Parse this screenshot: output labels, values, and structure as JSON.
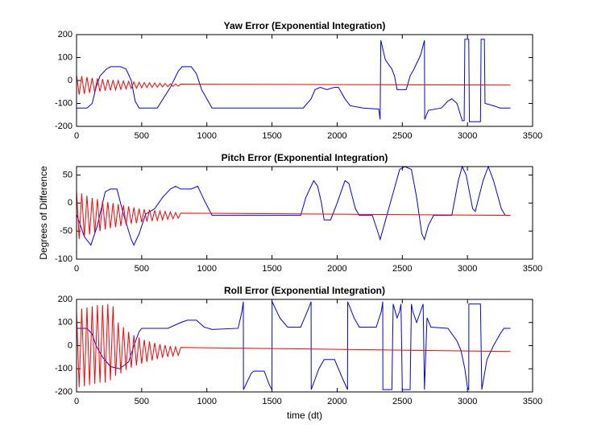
{
  "chart_data": [
    {
      "type": "line",
      "title": "Yaw Error (Exponential Integration)",
      "xlim": [
        0,
        3500
      ],
      "xticks": [
        0,
        500,
        1000,
        1500,
        2000,
        2500,
        3000,
        3500
      ],
      "ylim": [
        -200,
        200
      ],
      "yticks": [
        -200,
        -100,
        0,
        100,
        200
      ],
      "series": [
        {
          "color": "#0000ff",
          "x": [
            0,
            80,
            120,
            150,
            180,
            230,
            260,
            340,
            380,
            420,
            450,
            480,
            620,
            720,
            780,
            810,
            880,
            920,
            960,
            1040,
            1740,
            1800,
            1830,
            1870,
            1920,
            1980,
            2010,
            2060,
            2100,
            2200,
            2320,
            2330,
            2335,
            2370,
            2420,
            2440,
            2460,
            2530,
            2560,
            2590,
            2640,
            2670,
            2672,
            2700,
            2800,
            2850,
            2880,
            2920,
            2960,
            2975,
            2980,
            3010,
            3015,
            3100,
            3105,
            3130,
            3135,
            3200,
            3250,
            3330
          ],
          "values": [
            -120,
            -120,
            -100,
            -30,
            20,
            50,
            60,
            60,
            50,
            0,
            -90,
            -120,
            -120,
            -30,
            40,
            60,
            60,
            30,
            -40,
            -120,
            -120,
            -80,
            -40,
            -30,
            -40,
            -30,
            -30,
            -80,
            -110,
            -120,
            -125,
            -170,
            175,
            90,
            50,
            20,
            -40,
            -40,
            20,
            50,
            110,
            175,
            -170,
            -130,
            -120,
            -90,
            -80,
            -100,
            -175,
            -175,
            180,
            180,
            -180,
            -180,
            180,
            180,
            -100,
            -110,
            -120,
            -120
          ]
        },
        {
          "color": "#ff0000",
          "x": [
            0,
            20,
            40,
            60,
            80,
            100,
            120,
            140,
            160,
            180,
            200,
            220,
            240,
            260,
            280,
            300,
            320,
            340,
            360,
            380,
            400,
            420,
            440,
            460,
            480,
            500,
            520,
            540,
            560,
            580,
            600,
            620,
            640,
            660,
            680,
            700,
            720,
            740,
            760,
            780,
            800,
            3330
          ],
          "values": [
            25,
            -62,
            19,
            -58,
            15,
            -54,
            11,
            -51,
            9,
            -48,
            6,
            -45,
            4,
            -43,
            2,
            -41,
            0,
            -39,
            -2,
            -37,
            -4,
            -35,
            -6,
            -34,
            -8,
            -32,
            -9,
            -31,
            -10,
            -30,
            -11,
            -29,
            -12,
            -28,
            -13,
            -27,
            -14,
            -26,
            -15,
            -25,
            -16,
            -20
          ]
        }
      ]
    },
    {
      "type": "line",
      "title": "Pitch Error (Exponential Integration)",
      "ylabel": "Degrees of Difference",
      "xlim": [
        0,
        3500
      ],
      "xticks": [
        0,
        500,
        1000,
        1500,
        2000,
        2500,
        3000,
        3500
      ],
      "ylim": [
        -100,
        65
      ],
      "yticks": [
        -100,
        -50,
        0,
        50
      ],
      "series": [
        {
          "color": "#0000ff",
          "x": [
            0,
            60,
            110,
            160,
            220,
            260,
            310,
            360,
            420,
            440,
            480,
            530,
            600,
            660,
            720,
            760,
            800,
            880,
            930,
            980,
            1040,
            1720,
            1760,
            1820,
            1850,
            1880,
            1900,
            1950,
            2000,
            2060,
            2090,
            2140,
            2170,
            2270,
            2310,
            2330,
            2360,
            2420,
            2480,
            2520,
            2570,
            2610,
            2650,
            2670,
            2700,
            2740,
            2880,
            2930,
            2960,
            2990,
            3040,
            3060,
            3120,
            3160,
            3200,
            3260,
            3290,
            3330
          ],
          "values": [
            -20,
            -60,
            -75,
            -40,
            20,
            25,
            25,
            -20,
            -65,
            -75,
            -55,
            -20,
            -10,
            10,
            25,
            30,
            25,
            25,
            30,
            5,
            -22,
            -22,
            10,
            40,
            30,
            0,
            -30,
            -30,
            0,
            40,
            35,
            -10,
            -22,
            -22,
            -50,
            -65,
            -40,
            10,
            60,
            65,
            60,
            10,
            -55,
            -65,
            -40,
            -22,
            -22,
            40,
            65,
            50,
            -10,
            -15,
            40,
            65,
            40,
            -10,
            -22,
            -22
          ]
        },
        {
          "color": "#ff0000",
          "x": [
            0,
            20,
            40,
            60,
            80,
            100,
            120,
            140,
            160,
            180,
            200,
            220,
            240,
            260,
            280,
            300,
            320,
            340,
            360,
            380,
            400,
            420,
            440,
            460,
            480,
            500,
            520,
            540,
            560,
            580,
            600,
            620,
            640,
            660,
            680,
            700,
            720,
            740,
            760,
            780,
            800,
            3330
          ],
          "values": [
            23,
            -64,
            17,
            -60,
            13,
            -56,
            9,
            -53,
            7,
            -50,
            4,
            -47,
            2,
            -45,
            0,
            -43,
            -2,
            -41,
            -4,
            -39,
            -6,
            -37,
            -8,
            -36,
            -10,
            -34,
            -11,
            -33,
            -12,
            -32,
            -13,
            -31,
            -14,
            -30,
            -15,
            -29,
            -16,
            -28,
            -17,
            -27,
            -18,
            -22
          ]
        }
      ]
    },
    {
      "type": "line",
      "title": "Roll Error (Exponential Integration)",
      "xlabel": "time (dt)",
      "xlim": [
        0,
        3500
      ],
      "xticks": [
        0,
        500,
        1000,
        1500,
        2000,
        2500,
        3000,
        3500
      ],
      "ylim": [
        -200,
        200
      ],
      "yticks": [
        -200,
        -100,
        0,
        100,
        200
      ],
      "series": [
        {
          "color": "#0000ff",
          "x": [
            0,
            80,
            120,
            150,
            200,
            260,
            330,
            400,
            440,
            480,
            500,
            700,
            800,
            850,
            920,
            980,
            1040,
            1240,
            1270,
            1280,
            1281,
            1340,
            1360,
            1440,
            1480,
            1500,
            1501,
            1560,
            1620,
            1720,
            1780,
            1800,
            1801,
            1860,
            1900,
            1980,
            2040,
            2080,
            2081,
            2130,
            2170,
            2300,
            2340,
            2350,
            2351,
            2420,
            2430,
            2440,
            2460,
            2480,
            2490,
            2500,
            2560,
            2570,
            2580,
            2610,
            2660,
            2670,
            2690,
            2720,
            2850,
            2920,
            2950,
            2980,
            3000,
            3010,
            3011,
            3100,
            3110,
            3150,
            3200,
            3250,
            3280,
            3330
          ],
          "values": [
            75,
            75,
            50,
            0,
            -50,
            -90,
            -100,
            -70,
            0,
            60,
            75,
            75,
            100,
            110,
            110,
            80,
            70,
            75,
            150,
            190,
            -190,
            -120,
            -110,
            -110,
            -170,
            -190,
            190,
            120,
            80,
            80,
            160,
            190,
            -190,
            -100,
            -60,
            -60,
            -140,
            -190,
            190,
            120,
            80,
            80,
            150,
            190,
            -190,
            -190,
            180,
            160,
            120,
            150,
            180,
            -190,
            -190,
            180,
            150,
            100,
            180,
            -190,
            120,
            80,
            75,
            20,
            -20,
            -100,
            -180,
            -190,
            180,
            180,
            -190,
            -60,
            0,
            50,
            75,
            75
          ]
        },
        {
          "color": "#ff0000",
          "x": [
            0,
            20,
            40,
            60,
            80,
            100,
            120,
            140,
            160,
            180,
            200,
            220,
            240,
            260,
            280,
            300,
            320,
            340,
            360,
            380,
            400,
            420,
            440,
            460,
            480,
            500,
            520,
            540,
            560,
            580,
            600,
            620,
            640,
            660,
            680,
            700,
            720,
            740,
            760,
            780,
            800,
            3330
          ],
          "values": [
            150,
            -180,
            160,
            -175,
            165,
            -170,
            170,
            -165,
            175,
            -160,
            175,
            -160,
            180,
            -150,
            170,
            -130,
            100,
            -120,
            80,
            -105,
            60,
            -95,
            45,
            -85,
            35,
            -78,
            25,
            -70,
            18,
            -64,
            12,
            -58,
            6,
            -52,
            2,
            -48,
            -2,
            -45,
            -5,
            -42,
            -8,
            -25
          ]
        }
      ]
    }
  ]
}
